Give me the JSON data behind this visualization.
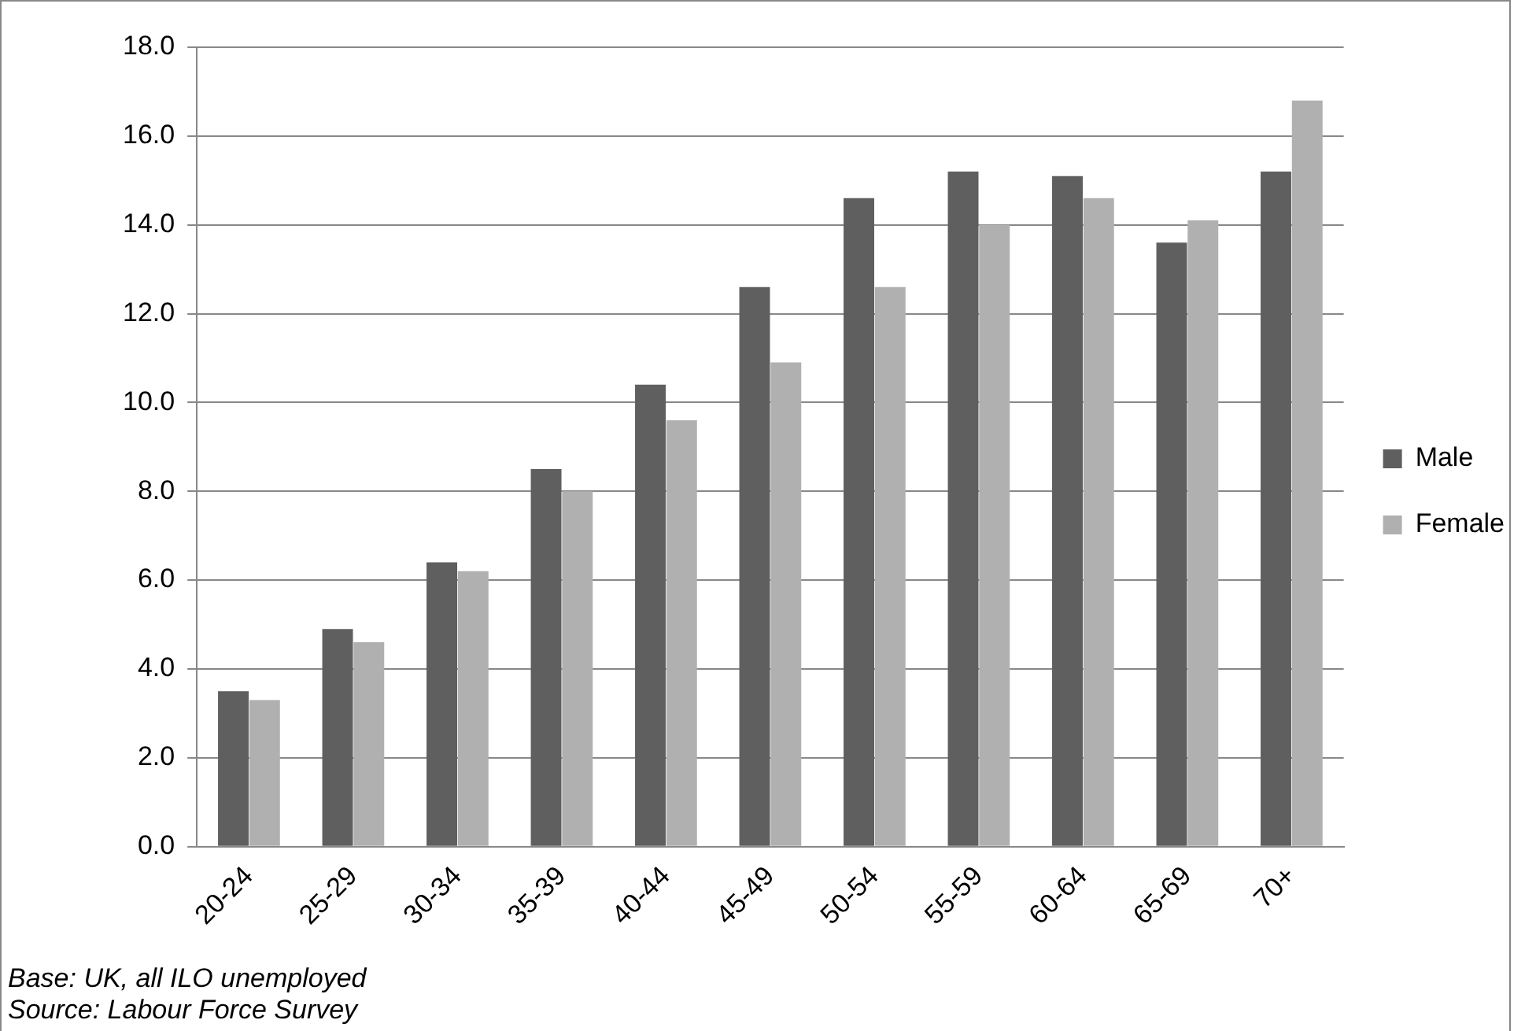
{
  "chart_data": {
    "type": "bar",
    "categories": [
      "20-24",
      "25-29",
      "30-34",
      "35-39",
      "40-44",
      "45-49",
      "50-54",
      "55-59",
      "60-64",
      "65-69",
      "70+"
    ],
    "series": [
      {
        "name": "Male",
        "color": "#5f5f5f",
        "values": [
          3.5,
          4.9,
          6.4,
          8.5,
          10.4,
          12.6,
          14.6,
          15.2,
          15.1,
          13.6,
          15.2
        ]
      },
      {
        "name": "Female",
        "color": "#b0b0b0",
        "values": [
          3.3,
          4.6,
          6.2,
          8.0,
          9.6,
          10.9,
          12.6,
          14.0,
          14.6,
          14.1,
          16.8
        ]
      }
    ],
    "ylim": [
      0,
      18
    ],
    "yticks": [
      {
        "value": 0,
        "label": "0.0"
      },
      {
        "value": 2,
        "label": "2.0"
      },
      {
        "value": 4,
        "label": "4.0"
      },
      {
        "value": 6,
        "label": "6.0"
      },
      {
        "value": 8,
        "label": "8.0"
      },
      {
        "value": 10,
        "label": "10.0"
      },
      {
        "value": 12,
        "label": "12.0"
      },
      {
        "value": 14,
        "label": "14.0"
      },
      {
        "value": 16,
        "label": "16.0"
      },
      {
        "value": 18,
        "label": "18.0"
      }
    ],
    "grid": "y",
    "legend": "right",
    "annotations": [
      "Base: UK, all ILO unemployed",
      "Source: Labour Force Survey"
    ]
  }
}
